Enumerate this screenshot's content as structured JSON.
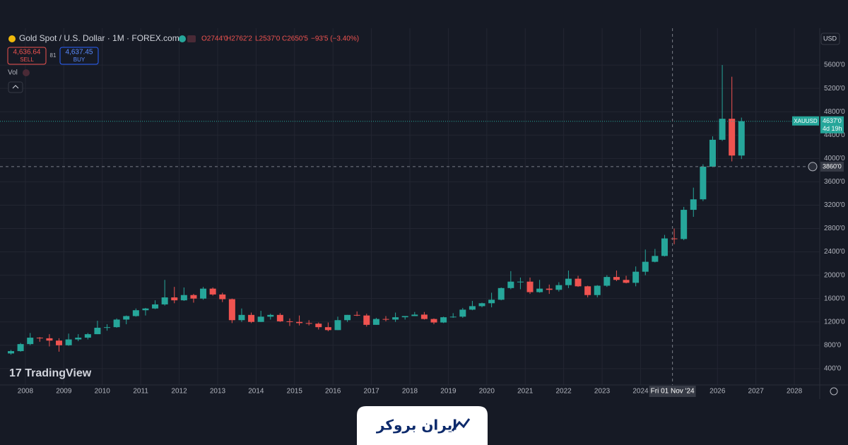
{
  "toolbar": {
    "symbol_title": "Gold Spot / U.S. Dollar · 1M · FOREX.com",
    "ohlc": [
      "O2744'0",
      "H2762'2",
      "L2537'0",
      "C2650'5",
      "−93'5 (−3.40%)"
    ],
    "sell_price": "4,636.64",
    "sell_label": "SELL",
    "spread": "81",
    "buy_price": "4,637.45",
    "buy_label": "BUY",
    "volume_label": "Vol",
    "currency": "USD",
    "brand": "TradingView"
  },
  "footer": {
    "logo_text": "ایران بروکر"
  },
  "chart_data": {
    "type": "candlestick",
    "up_color": "#26a69a",
    "down_color": "#ef5350",
    "grid": true,
    "xlim": [
      2007.34,
      2028.66
    ],
    "xticks": [
      2008,
      2009,
      2010,
      2011,
      2012,
      2013,
      2014,
      2015,
      2016,
      2017,
      2018,
      2019,
      2020,
      2021,
      2022,
      2023,
      2024,
      2026,
      2027,
      2028
    ],
    "ylim": [
      120,
      6170
    ],
    "yticks": [
      {
        "value": 400,
        "label": "400'0"
      },
      {
        "value": 800,
        "label": "800'0"
      },
      {
        "value": 1200,
        "label": "1200'0"
      },
      {
        "value": 1600,
        "label": "1600'0"
      },
      {
        "value": 2000,
        "label": "2000'0"
      },
      {
        "value": 2400,
        "label": "2400'0"
      },
      {
        "value": 2800,
        "label": "2800'0"
      },
      {
        "value": 3200,
        "label": "3200'0"
      },
      {
        "value": 3600,
        "label": "3600'0"
      },
      {
        "value": 4000,
        "label": "4000'0"
      },
      {
        "value": 4400,
        "label": "4400'0"
      },
      {
        "value": 4800,
        "label": "4800'0"
      },
      {
        "value": 5200,
        "label": "5200'0"
      },
      {
        "value": 5600,
        "label": "5600'0"
      }
    ],
    "last_price": {
      "symbol": "XAUUSD",
      "value": 4637,
      "label": "4637'0",
      "countdown": "4d 19h"
    },
    "crosshair": {
      "x": 2024.83,
      "x_label": "Fri 01 Nov '24",
      "y": {
        "value": 3860,
        "label": "3860'0"
      }
    },
    "x": [
      2007.5,
      2007.75,
      2008,
      2008.25,
      2008.5,
      2008.75,
      2009,
      2009.25,
      2009.5,
      2009.75,
      2010,
      2010.25,
      2010.5,
      2010.75,
      2011,
      2011.25,
      2011.5,
      2011.75,
      2012,
      2012.25,
      2012.5,
      2012.75,
      2013,
      2013.25,
      2013.5,
      2013.75,
      2014,
      2014.25,
      2014.5,
      2014.75,
      2015,
      2015.25,
      2015.5,
      2015.75,
      2016,
      2016.25,
      2016.5,
      2016.75,
      2017,
      2017.25,
      2017.5,
      2017.75,
      2018,
      2018.25,
      2018.5,
      2018.75,
      2019,
      2019.25,
      2019.5,
      2019.75,
      2020,
      2020.25,
      2020.5,
      2020.75,
      2021,
      2021.25,
      2021.5,
      2021.75,
      2022,
      2022.25,
      2022.5,
      2022.75,
      2023,
      2023.25,
      2023.5,
      2023.75,
      2024,
      2024.25,
      2024.5,
      2024.75,
      2025,
      2025.25,
      2025.5,
      2025.75,
      2026,
      2026.25,
      2026.5
    ],
    "open": [
      660,
      700,
      820,
      930,
      920,
      880,
      800,
      900,
      930,
      990,
      1100,
      1110,
      1240,
      1300,
      1400,
      1430,
      1500,
      1620,
      1570,
      1660,
      1600,
      1770,
      1670,
      1590,
      1230,
      1320,
      1200,
      1290,
      1320,
      1210,
      1200,
      1180,
      1170,
      1110,
      1060,
      1230,
      1320,
      1310,
      1150,
      1250,
      1240,
      1280,
      1300,
      1325,
      1250,
      1190,
      1280,
      1290,
      1410,
      1470,
      1520,
      1580,
      1780,
      1890,
      1890,
      1710,
      1770,
      1750,
      1830,
      1940,
      1810,
      1660,
      1820,
      1970,
      1920,
      1870,
      2060,
      2230,
      2330,
      2630,
      2620,
      3120,
      3300,
      3860,
      4320,
      4680,
      4050
    ],
    "high": [
      720,
      840,
      1010,
      940,
      990,
      920,
      1000,
      990,
      1010,
      1220,
      1160,
      1260,
      1310,
      1430,
      1440,
      1570,
      1920,
      1800,
      1790,
      1680,
      1800,
      1790,
      1700,
      1600,
      1430,
      1360,
      1390,
      1340,
      1350,
      1260,
      1310,
      1230,
      1190,
      1190,
      1290,
      1320,
      1380,
      1340,
      1270,
      1300,
      1360,
      1300,
      1370,
      1370,
      1260,
      1290,
      1350,
      1440,
      1560,
      1530,
      1700,
      1790,
      2070,
      1960,
      1960,
      1920,
      1840,
      1880,
      2080,
      1990,
      1820,
      1830,
      2000,
      2080,
      1990,
      2150,
      2440,
      2450,
      2690,
      2800,
      3170,
      3500,
      3900,
      4380,
      5600,
      5400,
      4700
    ],
    "low": [
      640,
      690,
      800,
      860,
      780,
      690,
      790,
      870,
      900,
      990,
      1050,
      1100,
      1160,
      1290,
      1310,
      1420,
      1480,
      1520,
      1560,
      1530,
      1580,
      1650,
      1540,
      1180,
      1200,
      1180,
      1200,
      1240,
      1200,
      1130,
      1140,
      1140,
      1070,
      1040,
      1060,
      1200,
      1300,
      1120,
      1150,
      1210,
      1200,
      1240,
      1300,
      1240,
      1160,
      1180,
      1270,
      1270,
      1400,
      1450,
      1450,
      1570,
      1760,
      1760,
      1680,
      1700,
      1680,
      1720,
      1780,
      1800,
      1620,
      1620,
      1800,
      1900,
      1860,
      1810,
      2000,
      2220,
      2320,
      2530,
      2600,
      3000,
      3270,
      3850,
      4300,
      3950,
      3990
    ],
    "close": [
      700,
      820,
      930,
      920,
      880,
      800,
      900,
      930,
      990,
      1100,
      1110,
      1240,
      1300,
      1400,
      1430,
      1500,
      1620,
      1570,
      1660,
      1600,
      1770,
      1670,
      1590,
      1230,
      1320,
      1200,
      1290,
      1320,
      1210,
      1200,
      1180,
      1170,
      1110,
      1060,
      1230,
      1320,
      1310,
      1150,
      1250,
      1240,
      1280,
      1300,
      1325,
      1250,
      1190,
      1280,
      1290,
      1410,
      1470,
      1520,
      1580,
      1780,
      1890,
      1890,
      1710,
      1770,
      1750,
      1830,
      1940,
      1810,
      1660,
      1820,
      1970,
      1920,
      1870,
      2060,
      2230,
      2330,
      2630,
      2620,
      3120,
      3300,
      3860,
      4320,
      4680,
      4050,
      4637
    ]
  }
}
